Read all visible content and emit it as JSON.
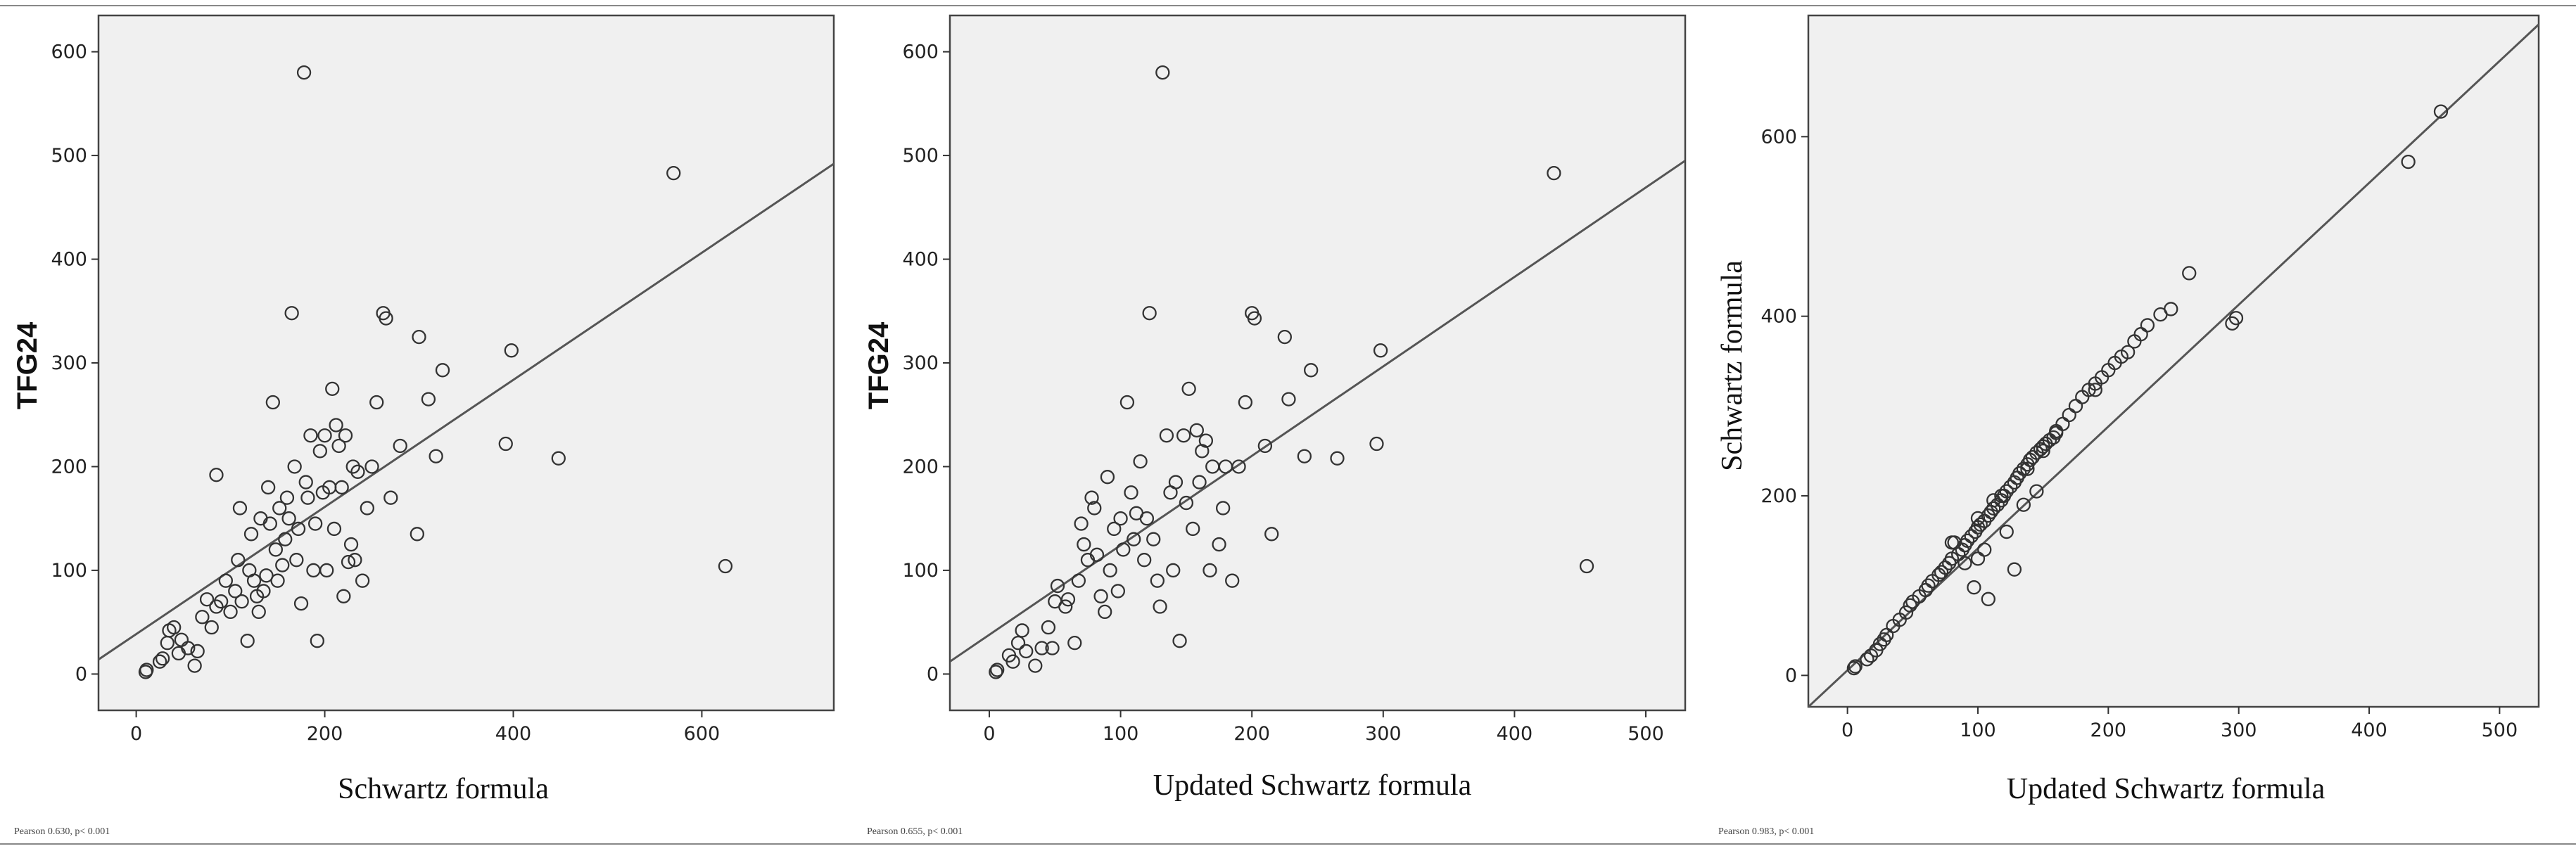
{
  "chart_data": [
    {
      "type": "scatter",
      "xlabel": "Schwartz formula",
      "ylabel": "TFG24",
      "xlim": [
        -40,
        740
      ],
      "ylim": [
        -35,
        635
      ],
      "xticks": [
        0,
        200,
        400,
        600
      ],
      "yticks": [
        0,
        100,
        200,
        300,
        400,
        500,
        600
      ],
      "footnote": "Pearson 0.630, p< 0.001",
      "fit_line": [
        [
          -40,
          14
        ],
        [
          740,
          492
        ]
      ],
      "points": [
        [
          10,
          2
        ],
        [
          11,
          4
        ],
        [
          25,
          12
        ],
        [
          28,
          15
        ],
        [
          33,
          30
        ],
        [
          35,
          42
        ],
        [
          40,
          45
        ],
        [
          45,
          20
        ],
        [
          48,
          33
        ],
        [
          55,
          25
        ],
        [
          62,
          8
        ],
        [
          65,
          22
        ],
        [
          70,
          55
        ],
        [
          75,
          72
        ],
        [
          80,
          45
        ],
        [
          85,
          65
        ],
        [
          85,
          192
        ],
        [
          90,
          70
        ],
        [
          95,
          90
        ],
        [
          100,
          60
        ],
        [
          105,
          80
        ],
        [
          108,
          110
        ],
        [
          110,
          160
        ],
        [
          112,
          70
        ],
        [
          118,
          32
        ],
        [
          120,
          100
        ],
        [
          122,
          135
        ],
        [
          125,
          90
        ],
        [
          128,
          75
        ],
        [
          130,
          60
        ],
        [
          132,
          150
        ],
        [
          135,
          80
        ],
        [
          138,
          95
        ],
        [
          140,
          180
        ],
        [
          142,
          145
        ],
        [
          145,
          262
        ],
        [
          148,
          120
        ],
        [
          150,
          90
        ],
        [
          152,
          160
        ],
        [
          155,
          105
        ],
        [
          158,
          130
        ],
        [
          160,
          170
        ],
        [
          162,
          150
        ],
        [
          165,
          348
        ],
        [
          168,
          200
        ],
        [
          170,
          110
        ],
        [
          172,
          140
        ],
        [
          175,
          68
        ],
        [
          178,
          580
        ],
        [
          180,
          185
        ],
        [
          182,
          170
        ],
        [
          185,
          230
        ],
        [
          188,
          100
        ],
        [
          190,
          145
        ],
        [
          192,
          32
        ],
        [
          195,
          215
        ],
        [
          198,
          175
        ],
        [
          200,
          230
        ],
        [
          202,
          100
        ],
        [
          205,
          180
        ],
        [
          208,
          275
        ],
        [
          210,
          140
        ],
        [
          212,
          240
        ],
        [
          215,
          220
        ],
        [
          218,
          180
        ],
        [
          220,
          75
        ],
        [
          222,
          230
        ],
        [
          225,
          108
        ],
        [
          228,
          125
        ],
        [
          230,
          200
        ],
        [
          232,
          110
        ],
        [
          235,
          195
        ],
        [
          240,
          90
        ],
        [
          245,
          160
        ],
        [
          250,
          200
        ],
        [
          255,
          262
        ],
        [
          262,
          348
        ],
        [
          265,
          343
        ],
        [
          270,
          170
        ],
        [
          280,
          220
        ],
        [
          298,
          135
        ],
        [
          300,
          325
        ],
        [
          310,
          265
        ],
        [
          318,
          210
        ],
        [
          325,
          293
        ],
        [
          392,
          222
        ],
        [
          398,
          312
        ],
        [
          448,
          208
        ],
        [
          570,
          483
        ],
        [
          625,
          104
        ]
      ]
    },
    {
      "type": "scatter",
      "xlabel": "Updated Schwartz formula",
      "ylabel": "TFG24",
      "xlim": [
        -30,
        530
      ],
      "ylim": [
        -35,
        635
      ],
      "xticks": [
        0,
        100,
        200,
        300,
        400,
        500
      ],
      "yticks": [
        0,
        100,
        200,
        300,
        400,
        500,
        600
      ],
      "footnote": "Pearson 0.655, p< 0.001",
      "fit_line": [
        [
          -30,
          12
        ],
        [
          530,
          495
        ]
      ],
      "points": [
        [
          5,
          2
        ],
        [
          6,
          4
        ],
        [
          15,
          18
        ],
        [
          18,
          12
        ],
        [
          22,
          30
        ],
        [
          25,
          42
        ],
        [
          28,
          22
        ],
        [
          35,
          8
        ],
        [
          40,
          25
        ],
        [
          45,
          45
        ],
        [
          48,
          25
        ],
        [
          50,
          70
        ],
        [
          52,
          85
        ],
        [
          58,
          65
        ],
        [
          60,
          72
        ],
        [
          65,
          30
        ],
        [
          68,
          90
        ],
        [
          70,
          145
        ],
        [
          72,
          125
        ],
        [
          75,
          110
        ],
        [
          78,
          170
        ],
        [
          80,
          160
        ],
        [
          82,
          115
        ],
        [
          85,
          75
        ],
        [
          88,
          60
        ],
        [
          90,
          190
        ],
        [
          92,
          100
        ],
        [
          95,
          140
        ],
        [
          98,
          80
        ],
        [
          100,
          150
        ],
        [
          102,
          120
        ],
        [
          105,
          262
        ],
        [
          108,
          175
        ],
        [
          110,
          130
        ],
        [
          112,
          155
        ],
        [
          115,
          205
        ],
        [
          118,
          110
        ],
        [
          120,
          150
        ],
        [
          122,
          348
        ],
        [
          125,
          130
        ],
        [
          128,
          90
        ],
        [
          130,
          65
        ],
        [
          132,
          580
        ],
        [
          135,
          230
        ],
        [
          138,
          175
        ],
        [
          140,
          100
        ],
        [
          142,
          185
        ],
        [
          145,
          32
        ],
        [
          148,
          230
        ],
        [
          150,
          165
        ],
        [
          152,
          275
        ],
        [
          155,
          140
        ],
        [
          158,
          235
        ],
        [
          160,
          185
        ],
        [
          162,
          215
        ],
        [
          165,
          225
        ],
        [
          168,
          100
        ],
        [
          170,
          200
        ],
        [
          175,
          125
        ],
        [
          178,
          160
        ],
        [
          180,
          200
        ],
        [
          185,
          90
        ],
        [
          190,
          200
        ],
        [
          195,
          262
        ],
        [
          200,
          348
        ],
        [
          202,
          343
        ],
        [
          210,
          220
        ],
        [
          215,
          135
        ],
        [
          225,
          325
        ],
        [
          228,
          265
        ],
        [
          240,
          210
        ],
        [
          245,
          293
        ],
        [
          265,
          208
        ],
        [
          295,
          222
        ],
        [
          298,
          312
        ],
        [
          430,
          483
        ],
        [
          455,
          104
        ]
      ]
    },
    {
      "type": "scatter",
      "xlabel": "Updated Schwartz formula",
      "ylabel": "Schwartz formula",
      "xlim": [
        -30,
        530
      ],
      "ylim": [
        -35,
        735
      ],
      "xticks": [
        0,
        100,
        200,
        300,
        400,
        500
      ],
      "yticks": [
        0,
        200,
        400,
        600
      ],
      "footnote": "Pearson 0.983, p< 0.001",
      "fit_line": [
        [
          -30,
          -35
        ],
        [
          530,
          725
        ]
      ],
      "points": [
        [
          5,
          8
        ],
        [
          6,
          10
        ],
        [
          15,
          18
        ],
        [
          18,
          22
        ],
        [
          22,
          28
        ],
        [
          25,
          35
        ],
        [
          28,
          40
        ],
        [
          30,
          45
        ],
        [
          35,
          55
        ],
        [
          40,
          62
        ],
        [
          45,
          70
        ],
        [
          48,
          78
        ],
        [
          50,
          82
        ],
        [
          55,
          88
        ],
        [
          60,
          95
        ],
        [
          62,
          100
        ],
        [
          65,
          105
        ],
        [
          70,
          112
        ],
        [
          72,
          115
        ],
        [
          75,
          120
        ],
        [
          78,
          125
        ],
        [
          80,
          130
        ],
        [
          82,
          148
        ],
        [
          85,
          135
        ],
        [
          88,
          140
        ],
        [
          90,
          145
        ],
        [
          92,
          150
        ],
        [
          95,
          155
        ],
        [
          98,
          160
        ],
        [
          100,
          165
        ],
        [
          100,
          175
        ],
        [
          102,
          168
        ],
        [
          105,
          172
        ],
        [
          108,
          178
        ],
        [
          110,
          182
        ],
        [
          112,
          186
        ],
        [
          115,
          190
        ],
        [
          118,
          195
        ],
        [
          120,
          200
        ],
        [
          122,
          205
        ],
        [
          125,
          210
        ],
        [
          128,
          215
        ],
        [
          130,
          220
        ],
        [
          132,
          225
        ],
        [
          135,
          230
        ],
        [
          138,
          235
        ],
        [
          140,
          240
        ],
        [
          142,
          243
        ],
        [
          145,
          248
        ],
        [
          148,
          252
        ],
        [
          150,
          255
        ],
        [
          152,
          258
        ],
        [
          155,
          262
        ],
        [
          158,
          265
        ],
        [
          160,
          270
        ],
        [
          165,
          280
        ],
        [
          170,
          290
        ],
        [
          175,
          300
        ],
        [
          180,
          310
        ],
        [
          185,
          318
        ],
        [
          190,
          325
        ],
        [
          195,
          332
        ],
        [
          200,
          340
        ],
        [
          210,
          355
        ],
        [
          215,
          360
        ],
        [
          220,
          372
        ],
        [
          225,
          380
        ],
        [
          230,
          390
        ],
        [
          240,
          402
        ],
        [
          248,
          408
        ],
        [
          262,
          448
        ],
        [
          295,
          392
        ],
        [
          298,
          398
        ],
        [
          430,
          572
        ],
        [
          455,
          628
        ],
        [
          97,
          98
        ],
        [
          108,
          85
        ],
        [
          128,
          118
        ],
        [
          150,
          250
        ],
        [
          160,
          272
        ],
        [
          112,
          195
        ],
        [
          118,
          200
        ],
        [
          80,
          148
        ],
        [
          90,
          125
        ],
        [
          100,
          130
        ],
        [
          105,
          140
        ],
        [
          122,
          160
        ],
        [
          135,
          190
        ],
        [
          145,
          205
        ],
        [
          190,
          318
        ],
        [
          205,
          348
        ],
        [
          138,
          230
        ]
      ]
    }
  ]
}
